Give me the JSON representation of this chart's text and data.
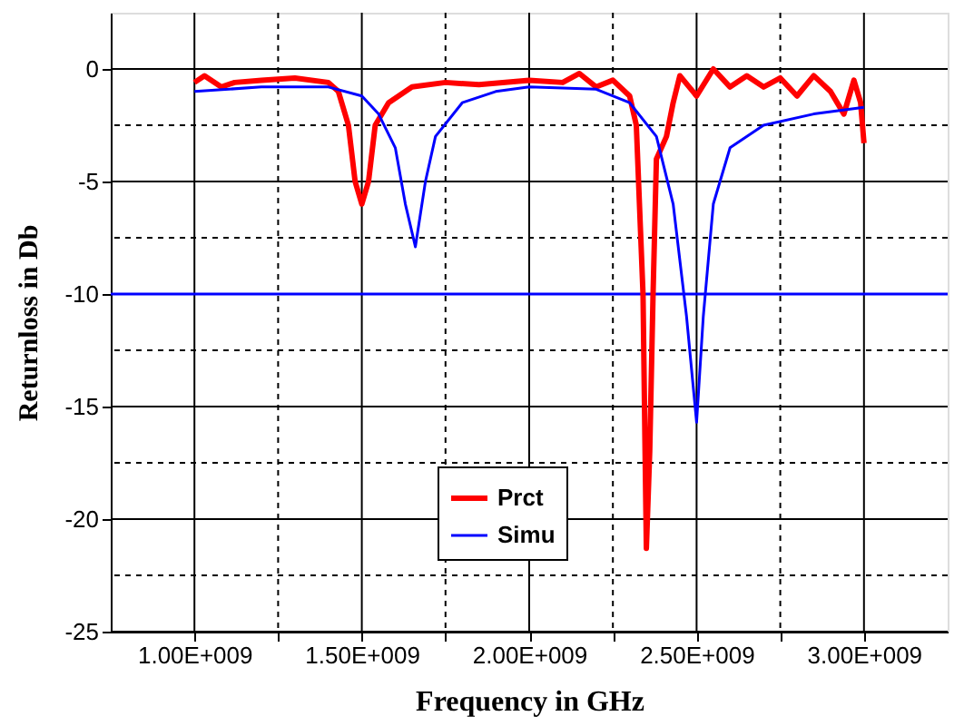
{
  "chart_data": {
    "type": "line",
    "xlabel": "Frequency in GHz",
    "ylabel": "Returnloss in Db",
    "xlim": [
      750000000,
      3250000000
    ],
    "xticks": [
      {
        "value": 1000000000,
        "label": "1.00E+009"
      },
      {
        "value": 1250000000,
        "label": null
      },
      {
        "value": 1500000000,
        "label": "1.50E+009"
      },
      {
        "value": 1750000000,
        "label": null
      },
      {
        "value": 2000000000,
        "label": "2.00E+009"
      },
      {
        "value": 2250000000,
        "label": null
      },
      {
        "value": 2500000000,
        "label": "2.50E+009"
      },
      {
        "value": 2750000000,
        "label": null
      },
      {
        "value": 3000000000,
        "label": "3.00E+009"
      }
    ],
    "ylim": [
      -25,
      2.5
    ],
    "yticks": [
      -25,
      {
        "value": -22.5,
        "label": null
      },
      -20,
      {
        "value": -17.5,
        "label": null
      },
      -15,
      {
        "value": -12.5,
        "label": null
      },
      -10,
      {
        "value": -7.5,
        "label": null
      },
      -5,
      {
        "value": -2.5,
        "label": null
      },
      0
    ],
    "grid": true,
    "legend": "bottom",
    "line_style": "solid",
    "marker": "none",
    "ref_lines": [
      {
        "axis": "y",
        "value": -10,
        "color": "#0000ff"
      }
    ],
    "series": [
      {
        "name": "Prct",
        "color": "#ff0000",
        "x": [
          1000000000,
          1030000000,
          1080000000,
          1120000000,
          1200000000,
          1300000000,
          1400000000,
          1430000000,
          1460000000,
          1480000000,
          1500000000,
          1520000000,
          1540000000,
          1580000000,
          1650000000,
          1750000000,
          1850000000,
          2000000000,
          2100000000,
          2150000000,
          2200000000,
          2250000000,
          2300000000,
          2320000000,
          2340000000,
          2350000000,
          2360000000,
          2370000000,
          2380000000,
          2410000000,
          2430000000,
          2450000000,
          2500000000,
          2550000000,
          2600000000,
          2650000000,
          2700000000,
          2750000000,
          2800000000,
          2850000000,
          2900000000,
          2940000000,
          2970000000,
          2990000000,
          3000000000
        ],
        "values": [
          -0.6,
          -0.3,
          -0.8,
          -0.6,
          -0.5,
          -0.4,
          -0.6,
          -1.0,
          -2.5,
          -5,
          -6,
          -5,
          -2.5,
          -1.5,
          -0.8,
          -0.6,
          -0.7,
          -0.5,
          -0.6,
          -0.2,
          -0.8,
          -0.5,
          -1.2,
          -2.5,
          -10,
          -21.3,
          -17,
          -10,
          -4,
          -3,
          -1.5,
          -0.3,
          -1.2,
          0,
          -0.8,
          -0.3,
          -0.8,
          -0.4,
          -1.2,
          -0.3,
          -1.0,
          -2.0,
          -0.5,
          -1.5,
          -3.3
        ]
      },
      {
        "name": "Simu",
        "color": "#0000ff",
        "x": [
          1000000000,
          1200000000,
          1400000000,
          1500000000,
          1550000000,
          1600000000,
          1630000000,
          1660000000,
          1690000000,
          1720000000,
          1800000000,
          1900000000,
          2000000000,
          2200000000,
          2300000000,
          2380000000,
          2430000000,
          2470000000,
          2500000000,
          2520000000,
          2550000000,
          2600000000,
          2700000000,
          2850000000,
          3000000000
        ],
        "values": [
          -1.0,
          -0.8,
          -0.8,
          -1.2,
          -2,
          -3.5,
          -6,
          -7.9,
          -5,
          -3,
          -1.5,
          -1.0,
          -0.8,
          -0.9,
          -1.5,
          -3,
          -6,
          -11,
          -15.7,
          -11,
          -6,
          -3.5,
          -2.5,
          -2.0,
          -1.7
        ]
      }
    ]
  }
}
